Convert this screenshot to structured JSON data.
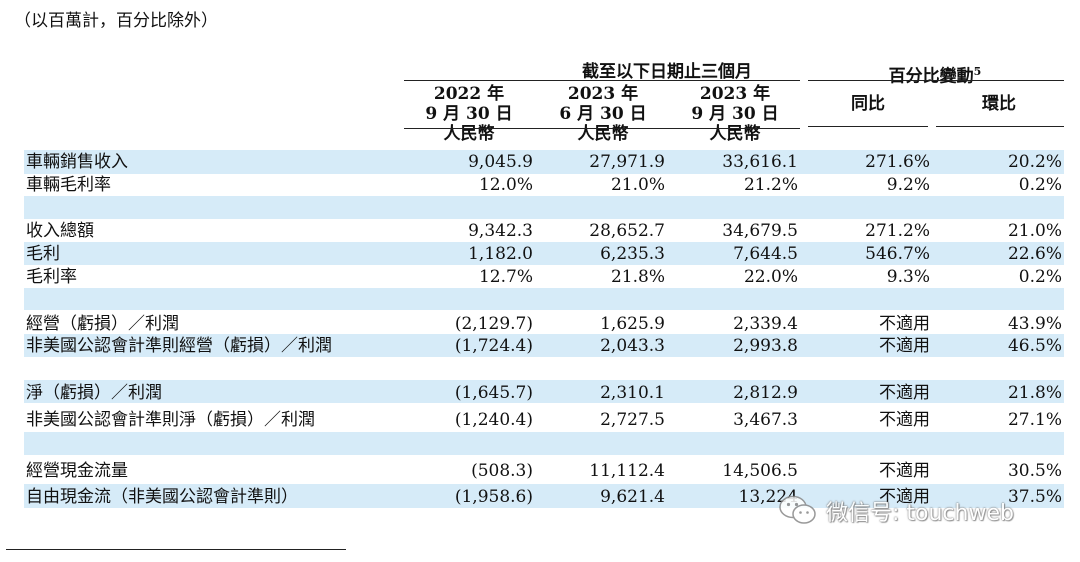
{
  "note": "（以百萬計，百分比除外）",
  "header": {
    "group_period": "截至以下日期止三個月",
    "group_change": "百分比變動",
    "group_change_sup": "5",
    "col1": {
      "year": "2022 年",
      "date": "9 月 30 日",
      "currency": "人民幣"
    },
    "col2": {
      "year": "2023 年",
      "date": "6 月 30 日",
      "currency": "人民幣"
    },
    "col3": {
      "year": "2023 年",
      "date": "9 月 30 日",
      "currency": "人民幣"
    },
    "yoy": "同比",
    "qoq": "環比"
  },
  "rows": [
    {
      "label": "車輛銷售收入",
      "v1": "9,045.9",
      "v2": "27,971.9",
      "v3": "33,616.1",
      "yoy": "271.6%",
      "qoq": "20.2%"
    },
    {
      "label": "車輛毛利率",
      "v1": "12.0%",
      "v2": "21.0%",
      "v3": "21.2%",
      "yoy": "9.2%",
      "qoq": "0.2%"
    },
    {
      "label": "收入總額",
      "v1": "9,342.3",
      "v2": "28,652.7",
      "v3": "34,679.5",
      "yoy": "271.2%",
      "qoq": "21.0%"
    },
    {
      "label": "毛利",
      "v1": "1,182.0",
      "v2": "6,235.3",
      "v3": "7,644.5",
      "yoy": "546.7%",
      "qoq": "22.6%"
    },
    {
      "label": "毛利率",
      "v1": "12.7%",
      "v2": "21.8%",
      "v3": "22.0%",
      "yoy": "9.3%",
      "qoq": "0.2%"
    },
    {
      "label": "經營（虧損）／利潤",
      "v1": "(2,129.7)",
      "v2": "1,625.9",
      "v3": "2,339.4",
      "yoy": "不適用",
      "qoq": "43.9%"
    },
    {
      "label": "非美國公認會計準則經營（虧損）／利潤",
      "v1": "(1,724.4)",
      "v2": "2,043.3",
      "v3": "2,993.8",
      "yoy": "不適用",
      "qoq": "46.5%"
    },
    {
      "label": "淨（虧損）／利潤",
      "v1": "(1,645.7)",
      "v2": "2,310.1",
      "v3": "2,812.9",
      "yoy": "不適用",
      "qoq": "21.8%"
    },
    {
      "label": "非美國公認會計準則淨（虧損）／利潤",
      "v1": "(1,240.4)",
      "v2": "2,727.5",
      "v3": "3,467.3",
      "yoy": "不適用",
      "qoq": "27.1%"
    },
    {
      "label": "經營現金流量",
      "v1": "(508.3)",
      "v2": "11,112.4",
      "v3": "14,506.5",
      "yoy": "不適用",
      "qoq": "30.5%"
    },
    {
      "label": "自由現金流（非美國公認會計準則）",
      "v1": "(1,958.6)",
      "v2": "9,621.4",
      "v3": "13,224",
      "yoy": "不適用",
      "qoq": "37.5%"
    }
  ],
  "watermark": {
    "text": "微信号: touchweb",
    "icon": "wechat-icon"
  }
}
